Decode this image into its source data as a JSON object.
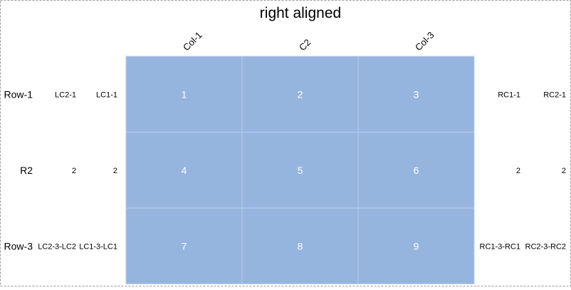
{
  "chart_data": {
    "type": "heatmap",
    "title": "right aligned",
    "columns": [
      "Col-1",
      "C2",
      "Col-3"
    ],
    "rows": [
      "Row-1",
      "R2",
      "Row-3"
    ],
    "values": [
      [
        1,
        2,
        3
      ],
      [
        4,
        5,
        6
      ],
      [
        7,
        8,
        9
      ]
    ],
    "left_annotations": {
      "level_1": [
        "LC1-1",
        "2",
        "LC1-3-LC1"
      ],
      "level_2": [
        "LC2-1",
        "2",
        "LC2-3-LC2"
      ]
    },
    "right_annotations": {
      "level_1": [
        "RC1-1",
        "2",
        "RC1-3-RC1"
      ],
      "level_2": [
        "RC2-1",
        "2",
        "RC2-3-RC2"
      ]
    },
    "column_label_rotation": "diagonal",
    "colors": {
      "cell_fill": "#95b5df",
      "cell_grid": "#bcd0ea",
      "cell_text": "#ffffff",
      "label_text": "#000000",
      "frame_border": "#999999",
      "background": "#ffffff"
    }
  }
}
